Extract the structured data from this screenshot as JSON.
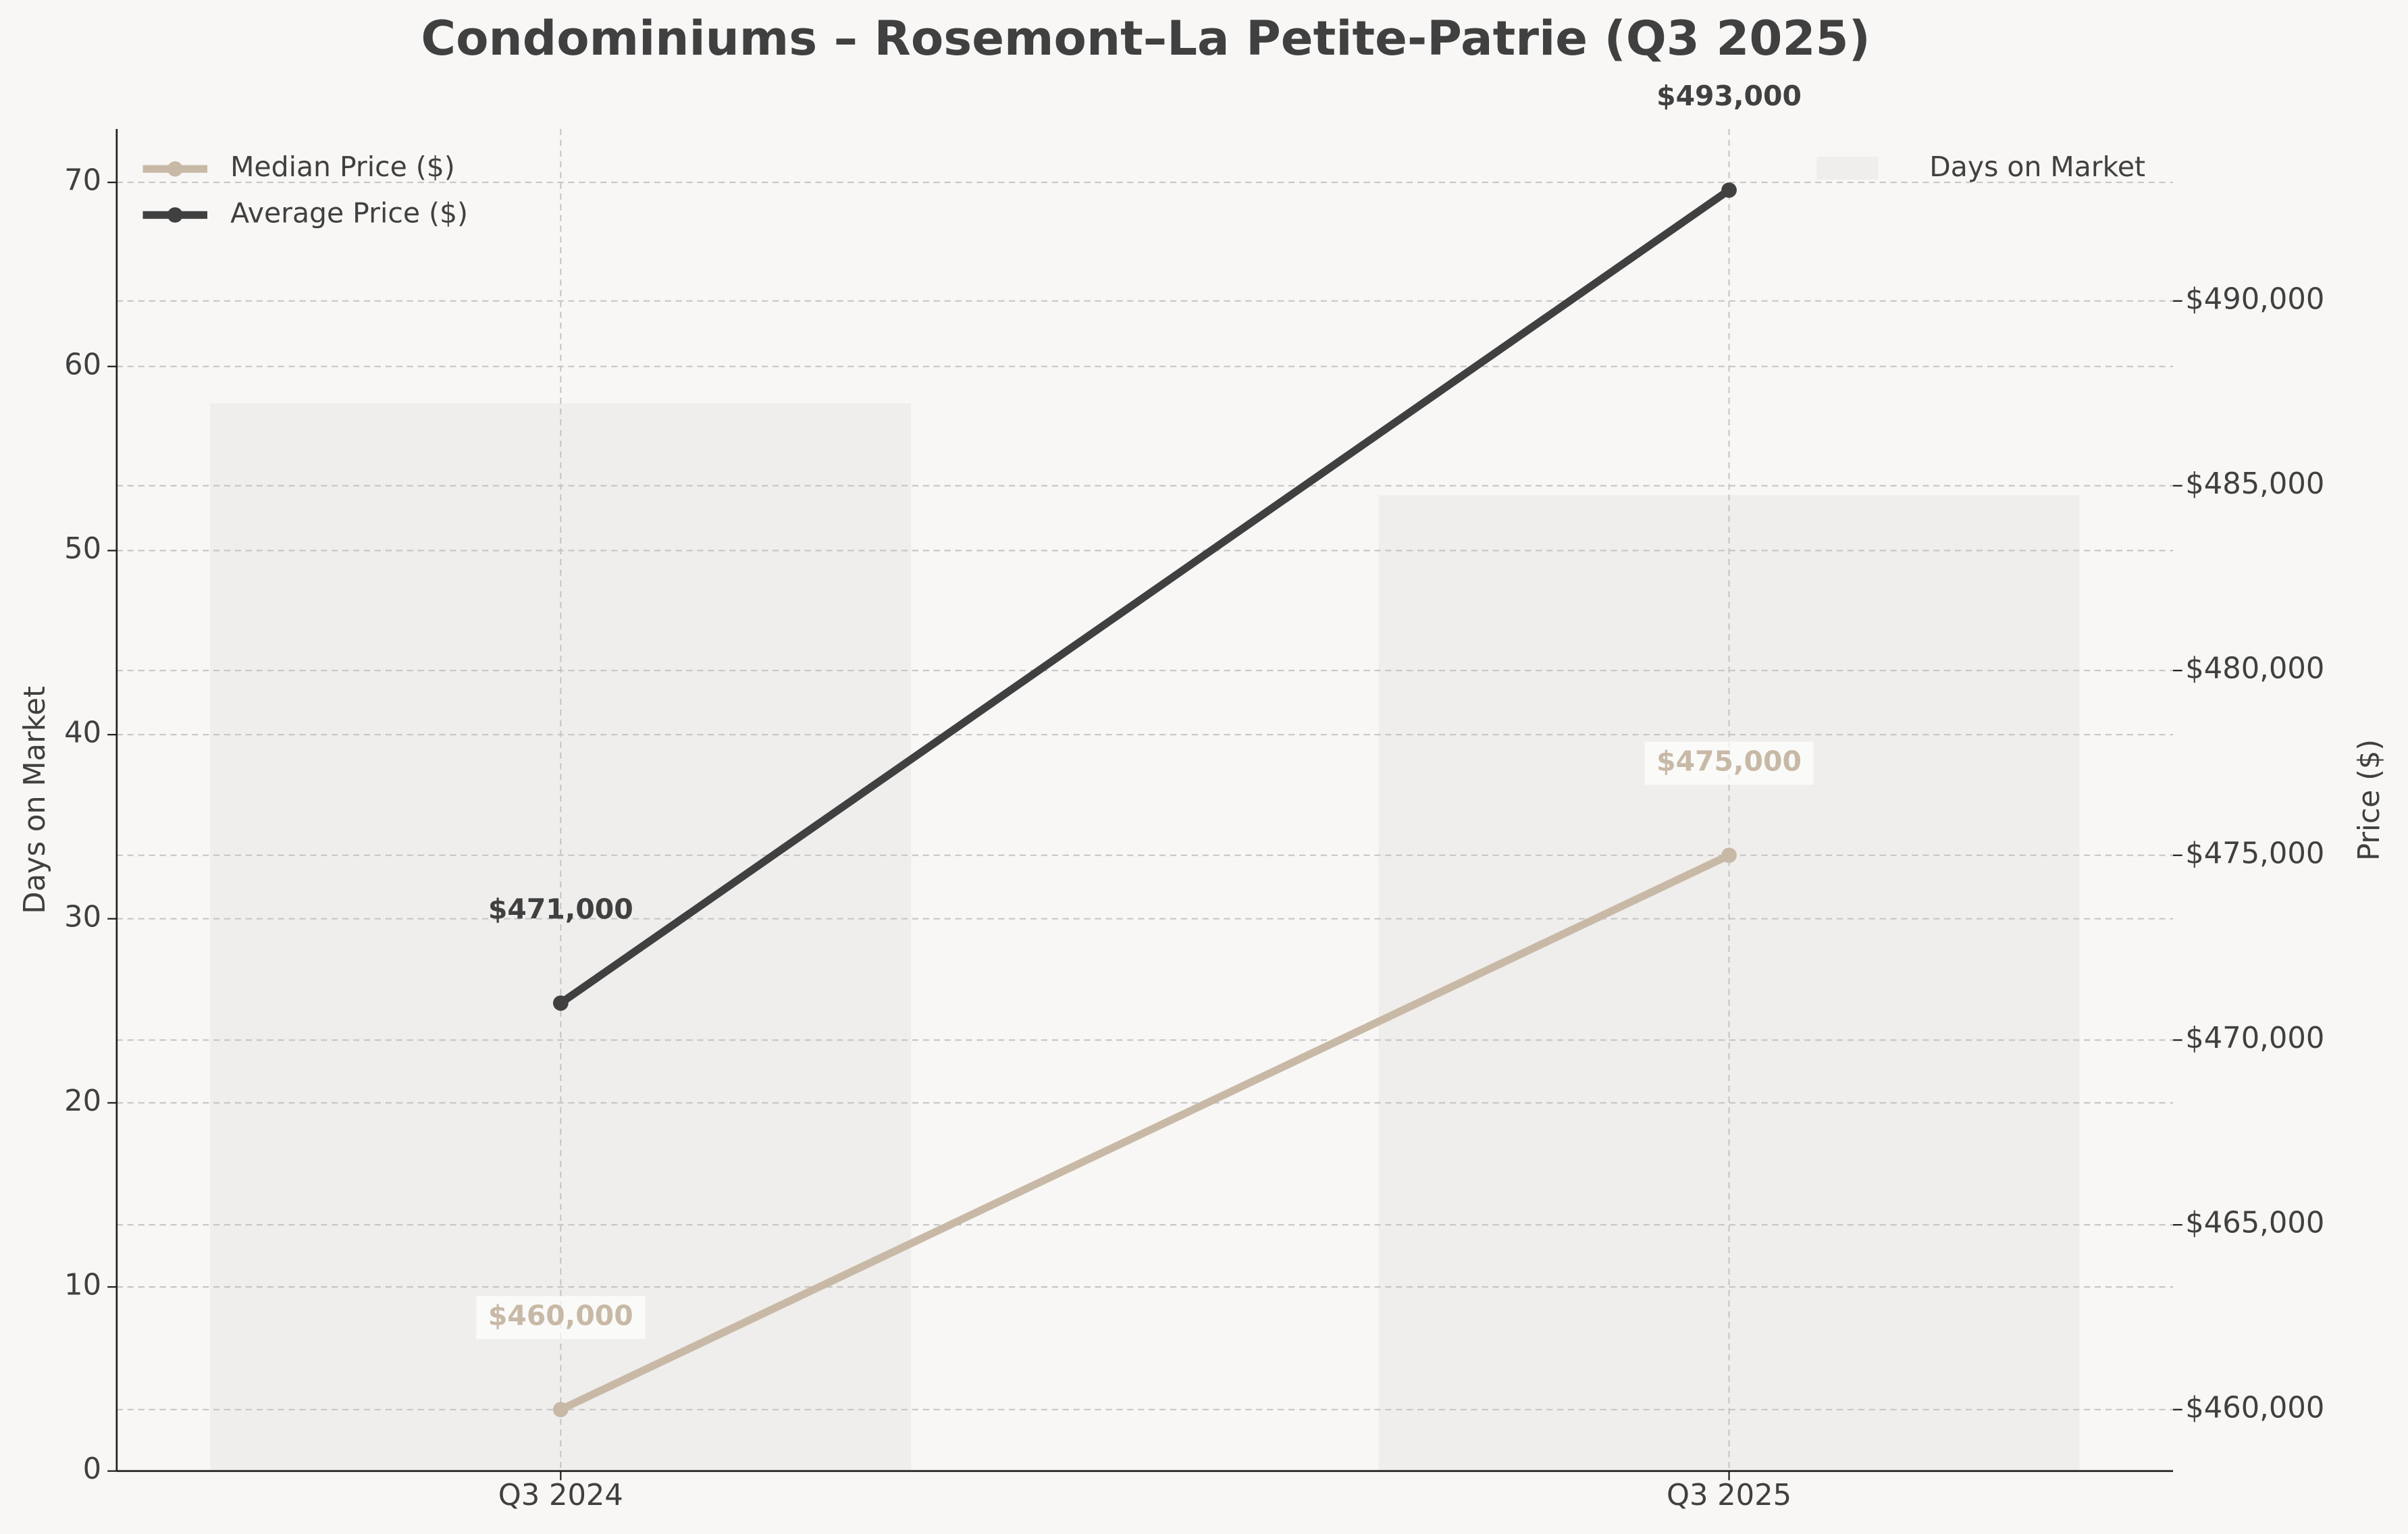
{
  "chart_data": {
    "type": "bar",
    "title": "Condominiums – Rosemont–La Petite-Patrie (Q3 2025)",
    "categories": [
      "Q3 2024",
      "Q3 2025"
    ],
    "ylabel": "Days on Market",
    "y2label": "Price ($)",
    "ylim": [
      0,
      72.9
    ],
    "yticks": [
      0,
      10,
      20,
      30,
      40,
      50,
      60,
      70
    ],
    "y2lim": [
      458338,
      494654
    ],
    "y2ticks": [
      {
        "value": 460000,
        "label": "$460,000"
      },
      {
        "value": 465000,
        "label": "$465,000"
      },
      {
        "value": 470000,
        "label": "$470,000"
      },
      {
        "value": 475000,
        "label": "$475,000"
      },
      {
        "value": 480000,
        "label": "$480,000"
      },
      {
        "value": 485000,
        "label": "$485,000"
      },
      {
        "value": 490000,
        "label": "$490,000"
      }
    ],
    "grid": true,
    "legend": "upper left",
    "bar_legend": "upper right",
    "series": [
      {
        "name": "Days on Market",
        "type": "bar",
        "color": "#efeeec",
        "values": [
          58,
          53
        ]
      },
      {
        "name": "Median Price ($)",
        "type": "line",
        "axis": "y2",
        "color": "#c8b9a6",
        "values": [
          460000,
          475000
        ],
        "value_labels": [
          "$460,000",
          "$475,000"
        ]
      },
      {
        "name": "Average Price ($)",
        "type": "line",
        "axis": "y2",
        "color": "#404040",
        "values": [
          471000,
          493000
        ],
        "value_labels": [
          "$471,000",
          "$493,000"
        ]
      }
    ]
  }
}
